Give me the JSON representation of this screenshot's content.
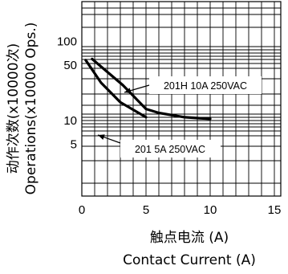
{
  "chart_data": {
    "type": "line",
    "title": "",
    "xlabel": [
      "触点电流 (A)",
      "Contact Current (A)"
    ],
    "ylabel": [
      "动作次数(x10000次)",
      "Operations(x10000 Ops.)"
    ],
    "xlim": [
      0,
      15
    ],
    "x_ticks": [
      "0",
      "5",
      "10",
      "15"
    ],
    "y_scale": "log",
    "y_ticks": [
      "100",
      "50",
      "10",
      "5"
    ],
    "grid": true,
    "series": [
      {
        "name": "201H  10A 250VAC",
        "x": [
          0.8,
          3.2,
          5,
          6,
          8,
          10
        ],
        "y": [
          60,
          28,
          14,
          12.5,
          11,
          10.5
        ]
      },
      {
        "name": "201  5A 250VAC",
        "x": [
          0.3,
          1.5,
          3,
          5
        ],
        "y": [
          58,
          30,
          17,
          11
        ]
      }
    ]
  }
}
